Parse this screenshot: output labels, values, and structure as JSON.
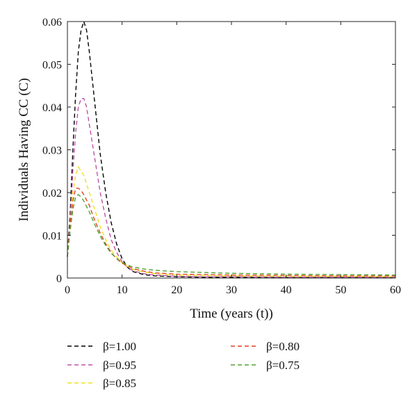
{
  "chart_data": {
    "type": "line",
    "xlabel": "Time (years (t))",
    "ylabel": "Individuals Having CC (C)",
    "xlim": [
      0,
      60
    ],
    "ylim": [
      0,
      0.06
    ],
    "x_ticks": [
      "0",
      "10",
      "20",
      "30",
      "40",
      "50",
      "60"
    ],
    "y_ticks": [
      "0",
      "0.01",
      "0.02",
      "0.03",
      "0.04",
      "0.05",
      "0.06"
    ],
    "grid": false,
    "legend_position": "bottom",
    "series": [
      {
        "name": "β=1.00",
        "color": "#000000",
        "x": [
          0,
          0.5,
          1,
          1.5,
          2,
          2.5,
          3,
          3.5,
          4,
          5,
          6,
          7,
          8,
          9,
          10,
          11,
          12,
          14,
          16,
          20,
          25,
          30,
          40,
          50,
          60
        ],
        "y": [
          0.005,
          0.015,
          0.03,
          0.043,
          0.053,
          0.058,
          0.06,
          0.058,
          0.053,
          0.041,
          0.029,
          0.02,
          0.013,
          0.008,
          0.0045,
          0.0025,
          0.0015,
          0.0008,
          0.0005,
          0.0003,
          0.0002,
          0.0002,
          0.0001,
          0.0001,
          0.0001
        ]
      },
      {
        "name": "β=0.95",
        "color": "#c050a8",
        "x": [
          0,
          0.5,
          1,
          1.5,
          2,
          2.5,
          3,
          3.5,
          4,
          5,
          6,
          7,
          8,
          9,
          10,
          11,
          12,
          14,
          16,
          20,
          25,
          30,
          40,
          50,
          60
        ],
        "y": [
          0.005,
          0.013,
          0.025,
          0.034,
          0.04,
          0.042,
          0.042,
          0.04,
          0.036,
          0.028,
          0.02,
          0.014,
          0.009,
          0.006,
          0.0038,
          0.0025,
          0.0017,
          0.001,
          0.0007,
          0.0004,
          0.0003,
          0.0003,
          0.0002,
          0.0002,
          0.0002
        ]
      },
      {
        "name": "β=0.85",
        "color": "#f0e020",
        "x": [
          0,
          0.5,
          1,
          1.5,
          2,
          2.5,
          3,
          4,
          5,
          6,
          7,
          8,
          9,
          10,
          11,
          12,
          14,
          16,
          20,
          25,
          30,
          40,
          50,
          60
        ],
        "y": [
          0.005,
          0.012,
          0.02,
          0.024,
          0.026,
          0.025,
          0.024,
          0.02,
          0.016,
          0.012,
          0.009,
          0.0065,
          0.005,
          0.0035,
          0.0027,
          0.002,
          0.0014,
          0.001,
          0.0007,
          0.0006,
          0.0005,
          0.0004,
          0.0004,
          0.0003
        ]
      },
      {
        "name": "β=0.80",
        "color": "#e04020",
        "x": [
          0,
          0.5,
          1,
          1.5,
          2,
          2.5,
          3,
          4,
          5,
          6,
          7,
          8,
          9,
          10,
          11,
          12,
          14,
          16,
          20,
          25,
          30,
          40,
          50,
          60
        ],
        "y": [
          0.005,
          0.012,
          0.018,
          0.021,
          0.021,
          0.0205,
          0.0195,
          0.017,
          0.0135,
          0.0105,
          0.008,
          0.006,
          0.0045,
          0.0035,
          0.0028,
          0.0022,
          0.0016,
          0.0012,
          0.0009,
          0.0008,
          0.0007,
          0.0006,
          0.0005,
          0.0005
        ]
      },
      {
        "name": "β=0.75",
        "color": "#50a030",
        "x": [
          0,
          0.5,
          1,
          1.5,
          2,
          2.5,
          3,
          4,
          5,
          6,
          7,
          8,
          9,
          10,
          11,
          12,
          14,
          16,
          20,
          25,
          30,
          40,
          50,
          60
        ],
        "y": [
          0.005,
          0.011,
          0.016,
          0.019,
          0.0195,
          0.019,
          0.018,
          0.0155,
          0.0125,
          0.0098,
          0.0076,
          0.0058,
          0.0046,
          0.0037,
          0.003,
          0.0026,
          0.0021,
          0.0018,
          0.0015,
          0.0013,
          0.0011,
          0.0009,
          0.0008,
          0.0007
        ]
      }
    ]
  }
}
